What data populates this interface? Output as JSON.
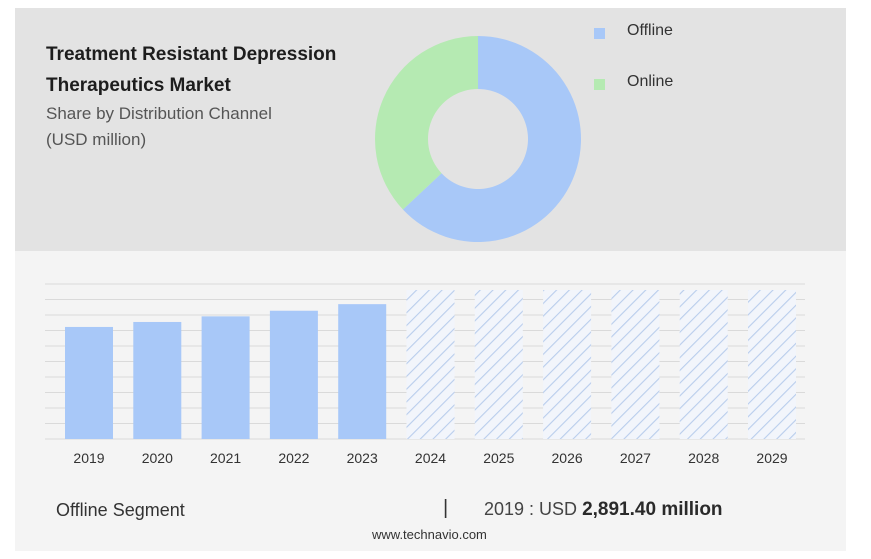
{
  "header": {
    "title_line1": "Treatment Resistant Depression",
    "title_line2": "Therapeutics Market",
    "subtitle_line1": "Share by Distribution Channel",
    "subtitle_line2": "(USD million)"
  },
  "footer": {
    "segment": "Offline Segment",
    "separator": "|",
    "year_prefix": "2019 : USD",
    "value": "2,891.40 million",
    "source": "www.technavio.com"
  },
  "colors": {
    "offline": "#a8c8f8",
    "online": "#b5eab2",
    "forecast_hatch": "#b9cdec"
  },
  "chart_data": [
    {
      "type": "pie",
      "subtype": "donut",
      "series": [
        {
          "name": "Offline",
          "value": 63
        },
        {
          "name": "Online",
          "value": 37
        }
      ],
      "legend_position": "right"
    },
    {
      "type": "bar",
      "categories": [
        "2019",
        "2020",
        "2021",
        "2022",
        "2023",
        "2024",
        "2025",
        "2026",
        "2027",
        "2028",
        "2029"
      ],
      "values": [
        2891.4,
        3020,
        3165,
        3310,
        3480,
        null,
        null,
        null,
        null,
        null,
        null
      ],
      "forecast_from": "2024",
      "ylim": [
        0,
        4000
      ],
      "grid": true
    }
  ]
}
